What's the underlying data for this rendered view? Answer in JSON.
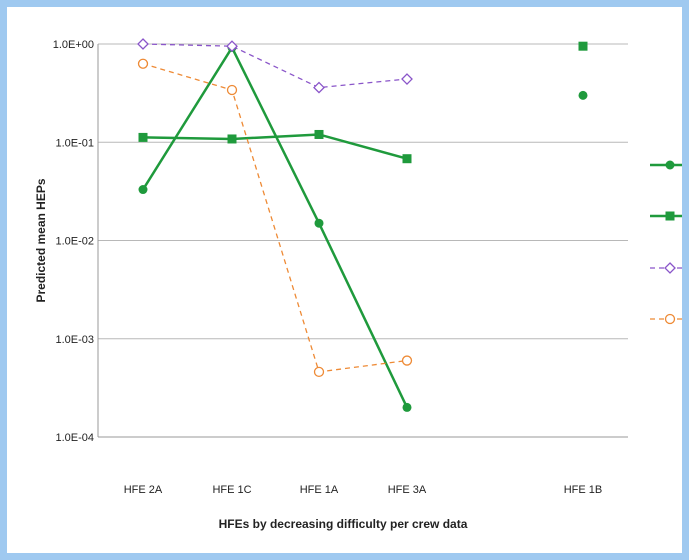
{
  "chart_data": {
    "type": "line",
    "title": "",
    "xlabel": "HFEs by decreasing difficulty per crew data",
    "ylabel": "Predicted mean HEPs",
    "yscale": "log",
    "ylim": [
      0.0001,
      1
    ],
    "yticks": [
      "1.0E+00",
      "1.0E-01",
      "1.0E-02",
      "1.0E-03",
      "1.0E-04"
    ],
    "categories": [
      "HFE 2A",
      "HFE 1C",
      "HFE 1A",
      "HFE 3A",
      "",
      "HFE 1B"
    ],
    "grid": true,
    "legend_position": "right",
    "series": [
      {
        "marker": "circle-filled",
        "line": "solid",
        "color": "#1f9a3c",
        "values": [
          0.033,
          0.92,
          0.015,
          0.0002,
          null,
          0.3
        ]
      },
      {
        "marker": "square-filled",
        "line": "solid",
        "color": "#1f9a3c",
        "values": [
          0.112,
          0.108,
          0.12,
          0.068,
          null,
          0.95
        ]
      },
      {
        "marker": "diamond-open",
        "line": "dashed",
        "color": "#8a55c9",
        "values": [
          1.0,
          0.95,
          0.36,
          0.44,
          null,
          null
        ]
      },
      {
        "marker": "circle-open",
        "line": "dashed",
        "color": "#ee8a35",
        "values": [
          0.63,
          0.34,
          0.00046,
          0.0006,
          null,
          null
        ]
      }
    ]
  }
}
